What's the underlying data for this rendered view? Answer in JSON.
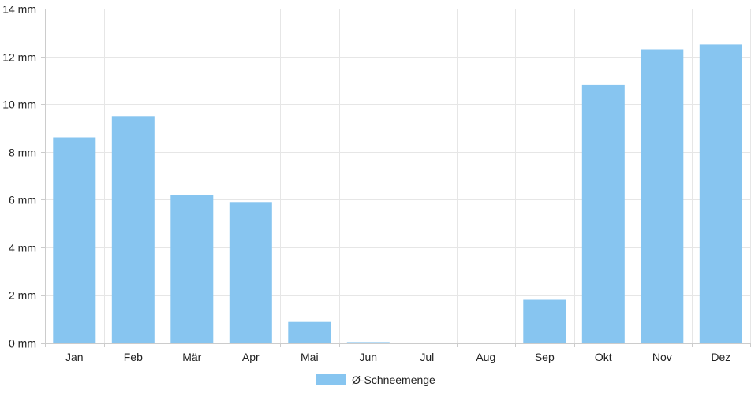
{
  "chart_data": {
    "type": "bar",
    "categories": [
      "Jan",
      "Feb",
      "Mär",
      "Apr",
      "Mai",
      "Jun",
      "Jul",
      "Aug",
      "Sep",
      "Okt",
      "Nov",
      "Dez"
    ],
    "series": [
      {
        "name": "Ø-Schneemenge",
        "values": [
          8.6,
          9.5,
          6.2,
          5.9,
          0.9,
          0.02,
          0,
          0,
          1.8,
          10.8,
          12.3,
          12.5
        ],
        "color": "#87c5f0"
      }
    ],
    "yticks": [
      "0 mm",
      "2 mm",
      "4 mm",
      "6 mm",
      "8 mm",
      "10 mm",
      "12 mm",
      "14 mm"
    ],
    "ylim": [
      0,
      14
    ],
    "grid": true,
    "legend_position": "bottom-center",
    "grid_color": "#e6e6e6",
    "axis_color": "#cccccc"
  }
}
